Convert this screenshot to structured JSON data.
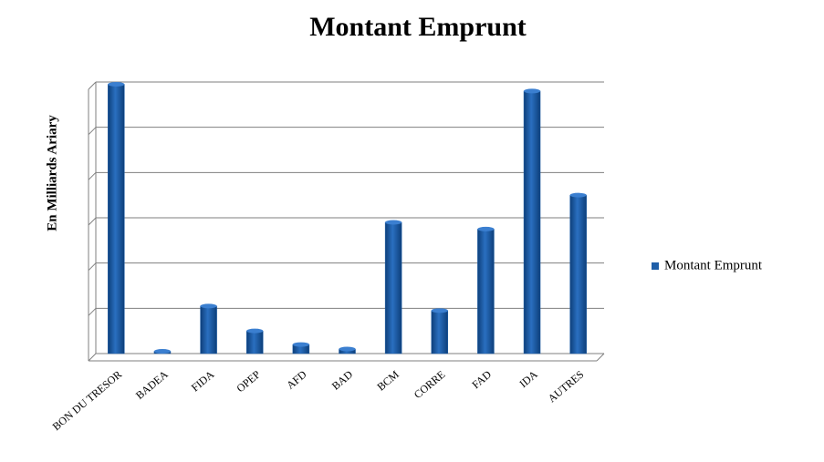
{
  "chart_data": {
    "type": "bar",
    "title": "Montant Emprunt",
    "y_label": "En Milliards Ariary",
    "categories": [
      "BON DU TRESOR",
      "BADEA",
      "FIDA",
      "OPEP",
      "AFD",
      "BAD",
      "BCM",
      "CORRE",
      "FAD",
      "IDA",
      "AUTRES"
    ],
    "series": [
      {
        "name": "Montant Emprunt",
        "color": "#1f5fa8",
        "values": [
          5.95,
          0.05,
          1.05,
          0.5,
          0.2,
          0.1,
          2.9,
          0.95,
          2.75,
          5.8,
          3.5
        ]
      }
    ],
    "ylim": [
      0,
      6
    ],
    "yticks": [
      0,
      1,
      2,
      3,
      4,
      5,
      6
    ],
    "grid": true,
    "legend": "right"
  }
}
